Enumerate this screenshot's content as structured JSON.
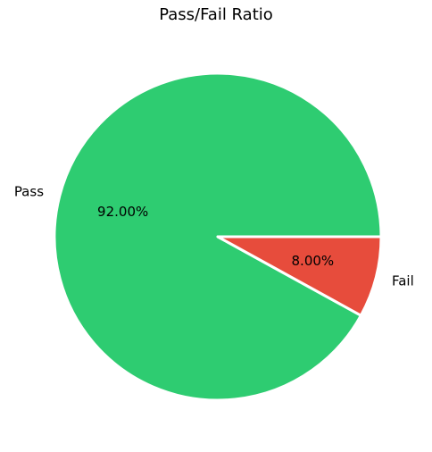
{
  "chart_data": {
    "type": "pie",
    "title": "Pass/Fail Ratio",
    "slices": [
      {
        "label": "Pass",
        "value": 92.0,
        "pct_label": "92.00%",
        "color": "#2ecc71"
      },
      {
        "label": "Fail",
        "value": 8.0,
        "pct_label": "8.00%",
        "color": "#e74c3c"
      }
    ]
  }
}
